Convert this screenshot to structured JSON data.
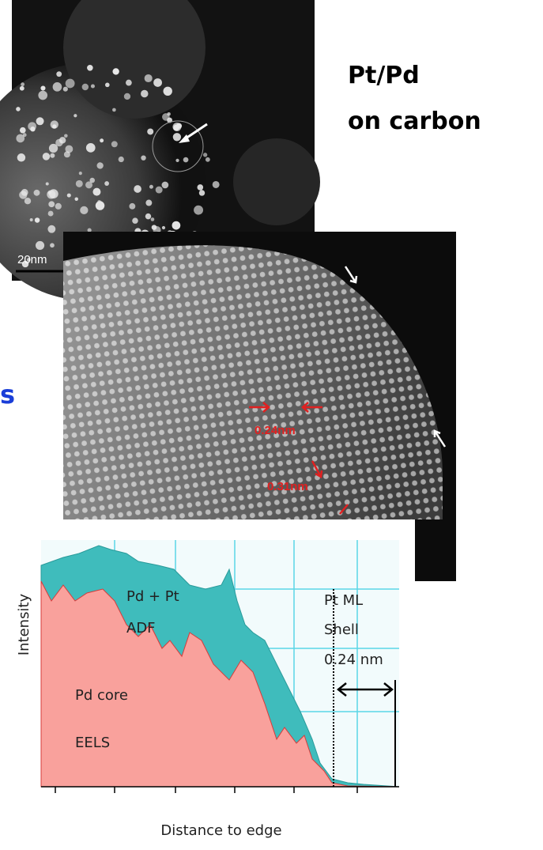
{
  "overview_image": {
    "title": "Pt/Pd",
    "subtitle": "on carbon",
    "scale_bar": "20nm"
  },
  "cut_text": "s",
  "lattice_image": {
    "spacing_labels": [
      "0.24nm",
      "0.31nm"
    ]
  },
  "profile": {
    "y_axis_label": "Intensity",
    "x_axis_label": "Distance to edge",
    "adf_label": [
      "Pd + Pt",
      "ADF"
    ],
    "eels_label": [
      "Pd core",
      "EELS"
    ],
    "shell_label": [
      "Pt ML",
      "Shell",
      "0.24 nm"
    ]
  }
}
